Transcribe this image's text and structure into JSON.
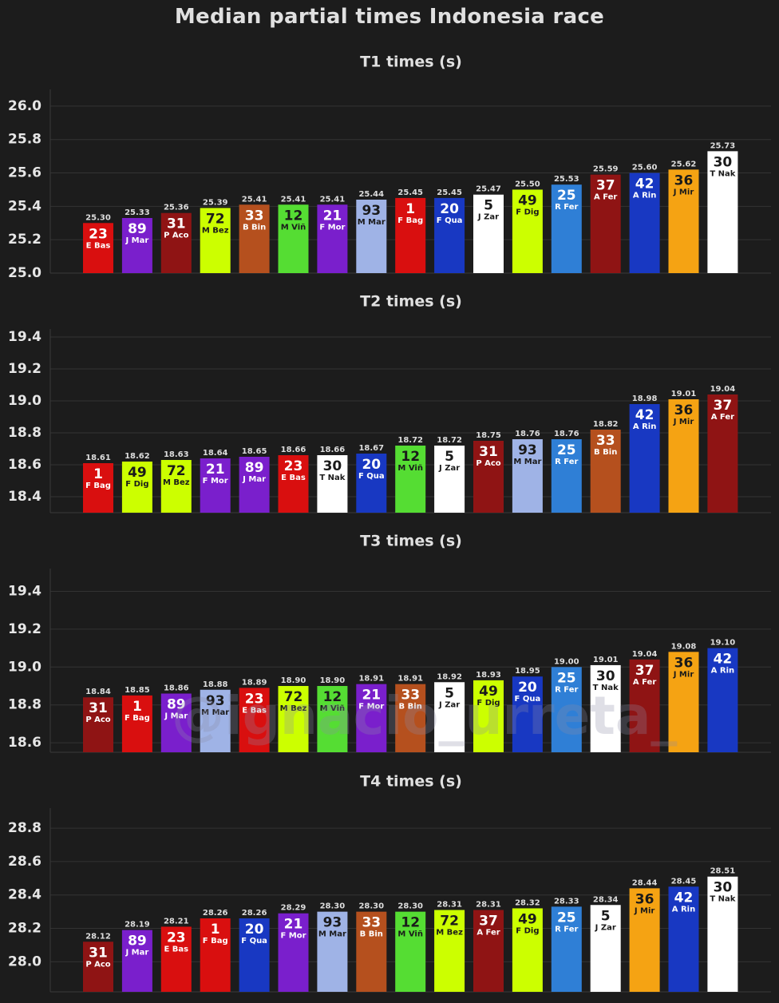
{
  "title": "Median partial times Indonesia race",
  "watermark": "@ignacio_urreta_",
  "colors": {
    "background": "#1c1c1c",
    "grid": "#333333",
    "axis_text": "#e6e6e6",
    "value_label": "#dddddd"
  },
  "riders": {
    "1": {
      "abbr": "F Bag",
      "color": "#d90f0f",
      "text": "#ffffff"
    },
    "23": {
      "abbr": "E Bas",
      "color": "#d90f0f",
      "text": "#ffffff"
    },
    "89": {
      "abbr": "J Mar",
      "color": "#7a1fcc",
      "text": "#ffffff"
    },
    "21": {
      "abbr": "F Mor",
      "color": "#7a1fcc",
      "text": "#ffffff"
    },
    "31": {
      "abbr": "P Aco",
      "color": "#8f1414",
      "text": "#ffffff"
    },
    "37": {
      "abbr": "A Fer",
      "color": "#8f1414",
      "text": "#ffffff"
    },
    "72": {
      "abbr": "M Bez",
      "color": "#ccff00",
      "text": "#1a1a1a"
    },
    "49": {
      "abbr": "F Dig",
      "color": "#ccff00",
      "text": "#1a1a1a"
    },
    "33": {
      "abbr": "B Bin",
      "color": "#b5501e",
      "text": "#ffffff"
    },
    "12": {
      "abbr": "M Viñ",
      "color": "#55dd33",
      "text": "#1a1a1a"
    },
    "93": {
      "abbr": "M Mar",
      "color": "#9fb3e6",
      "text": "#1a1a1a"
    },
    "20": {
      "abbr": "F Qua",
      "color": "#1838c2",
      "text": "#ffffff"
    },
    "42": {
      "abbr": "A Rin",
      "color": "#1838c2",
      "text": "#ffffff"
    },
    "5": {
      "abbr": "J Zar",
      "color": "#ffffff",
      "text": "#1a1a1a"
    },
    "30": {
      "abbr": "T Nak",
      "color": "#ffffff",
      "text": "#1a1a1a"
    },
    "25": {
      "abbr": "R Fer",
      "color": "#2f7fd6",
      "text": "#ffffff"
    },
    "36": {
      "abbr": "J Mir",
      "color": "#f5a313",
      "text": "#1a1a1a"
    }
  },
  "chart_data": [
    {
      "type": "bar",
      "title": "T1 times (s)",
      "ylim": [
        25.0,
        26.1
      ],
      "yticks": [
        25.0,
        25.2,
        25.4,
        25.6,
        25.8,
        26.0
      ],
      "grid": true,
      "bars": [
        {
          "number": "23",
          "value": 25.3
        },
        {
          "number": "89",
          "value": 25.33
        },
        {
          "number": "31",
          "value": 25.36
        },
        {
          "number": "72",
          "value": 25.39
        },
        {
          "number": "33",
          "value": 25.41
        },
        {
          "number": "12",
          "value": 25.41
        },
        {
          "number": "21",
          "value": 25.41
        },
        {
          "number": "93",
          "value": 25.44
        },
        {
          "number": "1",
          "value": 25.45
        },
        {
          "number": "20",
          "value": 25.45
        },
        {
          "number": "5",
          "value": 25.47
        },
        {
          "number": "49",
          "value": 25.5
        },
        {
          "number": "25",
          "value": 25.53
        },
        {
          "number": "37",
          "value": 25.59
        },
        {
          "number": "42",
          "value": 25.6
        },
        {
          "number": "36",
          "value": 25.62
        },
        {
          "number": "30",
          "value": 25.73
        }
      ]
    },
    {
      "type": "bar",
      "title": "T2 times (s)",
      "ylim": [
        18.3,
        19.45
      ],
      "yticks": [
        18.4,
        18.6,
        18.8,
        19.0,
        19.2,
        19.4
      ],
      "grid": true,
      "bars": [
        {
          "number": "1",
          "value": 18.61
        },
        {
          "number": "49",
          "value": 18.62
        },
        {
          "number": "72",
          "value": 18.63
        },
        {
          "number": "21",
          "value": 18.64
        },
        {
          "number": "89",
          "value": 18.65
        },
        {
          "number": "23",
          "value": 18.66
        },
        {
          "number": "30",
          "value": 18.66
        },
        {
          "number": "20",
          "value": 18.67
        },
        {
          "number": "12",
          "value": 18.72
        },
        {
          "number": "5",
          "value": 18.72
        },
        {
          "number": "31",
          "value": 18.75
        },
        {
          "number": "93",
          "value": 18.76
        },
        {
          "number": "25",
          "value": 18.76
        },
        {
          "number": "33",
          "value": 18.82
        },
        {
          "number": "42",
          "value": 18.98
        },
        {
          "number": "36",
          "value": 19.01
        },
        {
          "number": "37",
          "value": 19.04
        }
      ]
    },
    {
      "type": "bar",
      "title": "T3 times (s)",
      "ylim": [
        18.55,
        19.52
      ],
      "yticks": [
        18.6,
        18.8,
        19.0,
        19.2,
        19.4
      ],
      "grid": true,
      "bars": [
        {
          "number": "31",
          "value": 18.84
        },
        {
          "number": "1",
          "value": 18.85
        },
        {
          "number": "89",
          "value": 18.86
        },
        {
          "number": "93",
          "value": 18.88
        },
        {
          "number": "23",
          "value": 18.89
        },
        {
          "number": "72",
          "value": 18.9
        },
        {
          "number": "12",
          "value": 18.9
        },
        {
          "number": "21",
          "value": 18.91
        },
        {
          "number": "33",
          "value": 18.91
        },
        {
          "number": "5",
          "value": 18.92
        },
        {
          "number": "49",
          "value": 18.93
        },
        {
          "number": "20",
          "value": 18.95
        },
        {
          "number": "25",
          "value": 19.0
        },
        {
          "number": "30",
          "value": 19.01
        },
        {
          "number": "37",
          "value": 19.04
        },
        {
          "number": "36",
          "value": 19.08
        },
        {
          "number": "42",
          "value": 19.1
        }
      ]
    },
    {
      "type": "bar",
      "title": "T4 times (s)",
      "ylim": [
        27.82,
        28.92
      ],
      "yticks": [
        28.0,
        28.2,
        28.4,
        28.6,
        28.8
      ],
      "grid": true,
      "bars": [
        {
          "number": "31",
          "value": 28.12
        },
        {
          "number": "89",
          "value": 28.19
        },
        {
          "number": "23",
          "value": 28.21
        },
        {
          "number": "1",
          "value": 28.26
        },
        {
          "number": "20",
          "value": 28.26
        },
        {
          "number": "21",
          "value": 28.29
        },
        {
          "number": "93",
          "value": 28.3
        },
        {
          "number": "33",
          "value": 28.3
        },
        {
          "number": "12",
          "value": 28.3
        },
        {
          "number": "72",
          "value": 28.31
        },
        {
          "number": "37",
          "value": 28.31
        },
        {
          "number": "49",
          "value": 28.32
        },
        {
          "number": "25",
          "value": 28.33
        },
        {
          "number": "5",
          "value": 28.34
        },
        {
          "number": "36",
          "value": 28.44
        },
        {
          "number": "42",
          "value": 28.45
        },
        {
          "number": "30",
          "value": 28.51
        }
      ]
    }
  ]
}
